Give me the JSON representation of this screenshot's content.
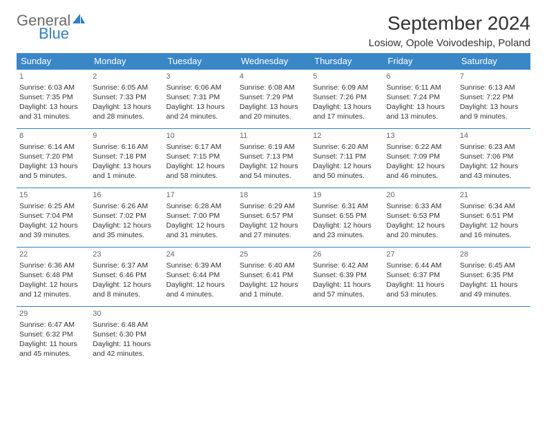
{
  "logo": {
    "text_general": "General",
    "text_blue": "Blue"
  },
  "header": {
    "month_title": "September 2024",
    "location": "Losiow, Opole Voivodeship, Poland"
  },
  "colors": {
    "header_bg": "#3a87c8",
    "header_text": "#ffffff",
    "cell_border": "#2f7fc2",
    "text": "#333333",
    "logo_gray": "#6a6a6a",
    "logo_blue": "#2f7fc2"
  },
  "day_headers": [
    "Sunday",
    "Monday",
    "Tuesday",
    "Wednesday",
    "Thursday",
    "Friday",
    "Saturday"
  ],
  "days": [
    {
      "n": "1",
      "sunrise": "Sunrise: 6:03 AM",
      "sunset": "Sunset: 7:35 PM",
      "daylight": "Daylight: 13 hours and 31 minutes."
    },
    {
      "n": "2",
      "sunrise": "Sunrise: 6:05 AM",
      "sunset": "Sunset: 7:33 PM",
      "daylight": "Daylight: 13 hours and 28 minutes."
    },
    {
      "n": "3",
      "sunrise": "Sunrise: 6:06 AM",
      "sunset": "Sunset: 7:31 PM",
      "daylight": "Daylight: 13 hours and 24 minutes."
    },
    {
      "n": "4",
      "sunrise": "Sunrise: 6:08 AM",
      "sunset": "Sunset: 7:29 PM",
      "daylight": "Daylight: 13 hours and 20 minutes."
    },
    {
      "n": "5",
      "sunrise": "Sunrise: 6:09 AM",
      "sunset": "Sunset: 7:26 PM",
      "daylight": "Daylight: 13 hours and 17 minutes."
    },
    {
      "n": "6",
      "sunrise": "Sunrise: 6:11 AM",
      "sunset": "Sunset: 7:24 PM",
      "daylight": "Daylight: 13 hours and 13 minutes."
    },
    {
      "n": "7",
      "sunrise": "Sunrise: 6:13 AM",
      "sunset": "Sunset: 7:22 PM",
      "daylight": "Daylight: 13 hours and 9 minutes."
    },
    {
      "n": "8",
      "sunrise": "Sunrise: 6:14 AM",
      "sunset": "Sunset: 7:20 PM",
      "daylight": "Daylight: 13 hours and 5 minutes."
    },
    {
      "n": "9",
      "sunrise": "Sunrise: 6:16 AM",
      "sunset": "Sunset: 7:18 PM",
      "daylight": "Daylight: 13 hours and 1 minute."
    },
    {
      "n": "10",
      "sunrise": "Sunrise: 6:17 AM",
      "sunset": "Sunset: 7:15 PM",
      "daylight": "Daylight: 12 hours and 58 minutes."
    },
    {
      "n": "11",
      "sunrise": "Sunrise: 6:19 AM",
      "sunset": "Sunset: 7:13 PM",
      "daylight": "Daylight: 12 hours and 54 minutes."
    },
    {
      "n": "12",
      "sunrise": "Sunrise: 6:20 AM",
      "sunset": "Sunset: 7:11 PM",
      "daylight": "Daylight: 12 hours and 50 minutes."
    },
    {
      "n": "13",
      "sunrise": "Sunrise: 6:22 AM",
      "sunset": "Sunset: 7:09 PM",
      "daylight": "Daylight: 12 hours and 46 minutes."
    },
    {
      "n": "14",
      "sunrise": "Sunrise: 6:23 AM",
      "sunset": "Sunset: 7:06 PM",
      "daylight": "Daylight: 12 hours and 43 minutes."
    },
    {
      "n": "15",
      "sunrise": "Sunrise: 6:25 AM",
      "sunset": "Sunset: 7:04 PM",
      "daylight": "Daylight: 12 hours and 39 minutes."
    },
    {
      "n": "16",
      "sunrise": "Sunrise: 6:26 AM",
      "sunset": "Sunset: 7:02 PM",
      "daylight": "Daylight: 12 hours and 35 minutes."
    },
    {
      "n": "17",
      "sunrise": "Sunrise: 6:28 AM",
      "sunset": "Sunset: 7:00 PM",
      "daylight": "Daylight: 12 hours and 31 minutes."
    },
    {
      "n": "18",
      "sunrise": "Sunrise: 6:29 AM",
      "sunset": "Sunset: 6:57 PM",
      "daylight": "Daylight: 12 hours and 27 minutes."
    },
    {
      "n": "19",
      "sunrise": "Sunrise: 6:31 AM",
      "sunset": "Sunset: 6:55 PM",
      "daylight": "Daylight: 12 hours and 23 minutes."
    },
    {
      "n": "20",
      "sunrise": "Sunrise: 6:33 AM",
      "sunset": "Sunset: 6:53 PM",
      "daylight": "Daylight: 12 hours and 20 minutes."
    },
    {
      "n": "21",
      "sunrise": "Sunrise: 6:34 AM",
      "sunset": "Sunset: 6:51 PM",
      "daylight": "Daylight: 12 hours and 16 minutes."
    },
    {
      "n": "22",
      "sunrise": "Sunrise: 6:36 AM",
      "sunset": "Sunset: 6:48 PM",
      "daylight": "Daylight: 12 hours and 12 minutes."
    },
    {
      "n": "23",
      "sunrise": "Sunrise: 6:37 AM",
      "sunset": "Sunset: 6:46 PM",
      "daylight": "Daylight: 12 hours and 8 minutes."
    },
    {
      "n": "24",
      "sunrise": "Sunrise: 6:39 AM",
      "sunset": "Sunset: 6:44 PM",
      "daylight": "Daylight: 12 hours and 4 minutes."
    },
    {
      "n": "25",
      "sunrise": "Sunrise: 6:40 AM",
      "sunset": "Sunset: 6:41 PM",
      "daylight": "Daylight: 12 hours and 1 minute."
    },
    {
      "n": "26",
      "sunrise": "Sunrise: 6:42 AM",
      "sunset": "Sunset: 6:39 PM",
      "daylight": "Daylight: 11 hours and 57 minutes."
    },
    {
      "n": "27",
      "sunrise": "Sunrise: 6:44 AM",
      "sunset": "Sunset: 6:37 PM",
      "daylight": "Daylight: 11 hours and 53 minutes."
    },
    {
      "n": "28",
      "sunrise": "Sunrise: 6:45 AM",
      "sunset": "Sunset: 6:35 PM",
      "daylight": "Daylight: 11 hours and 49 minutes."
    },
    {
      "n": "29",
      "sunrise": "Sunrise: 6:47 AM",
      "sunset": "Sunset: 6:32 PM",
      "daylight": "Daylight: 11 hours and 45 minutes."
    },
    {
      "n": "30",
      "sunrise": "Sunrise: 6:48 AM",
      "sunset": "Sunset: 6:30 PM",
      "daylight": "Daylight: 11 hours and 42 minutes."
    }
  ]
}
